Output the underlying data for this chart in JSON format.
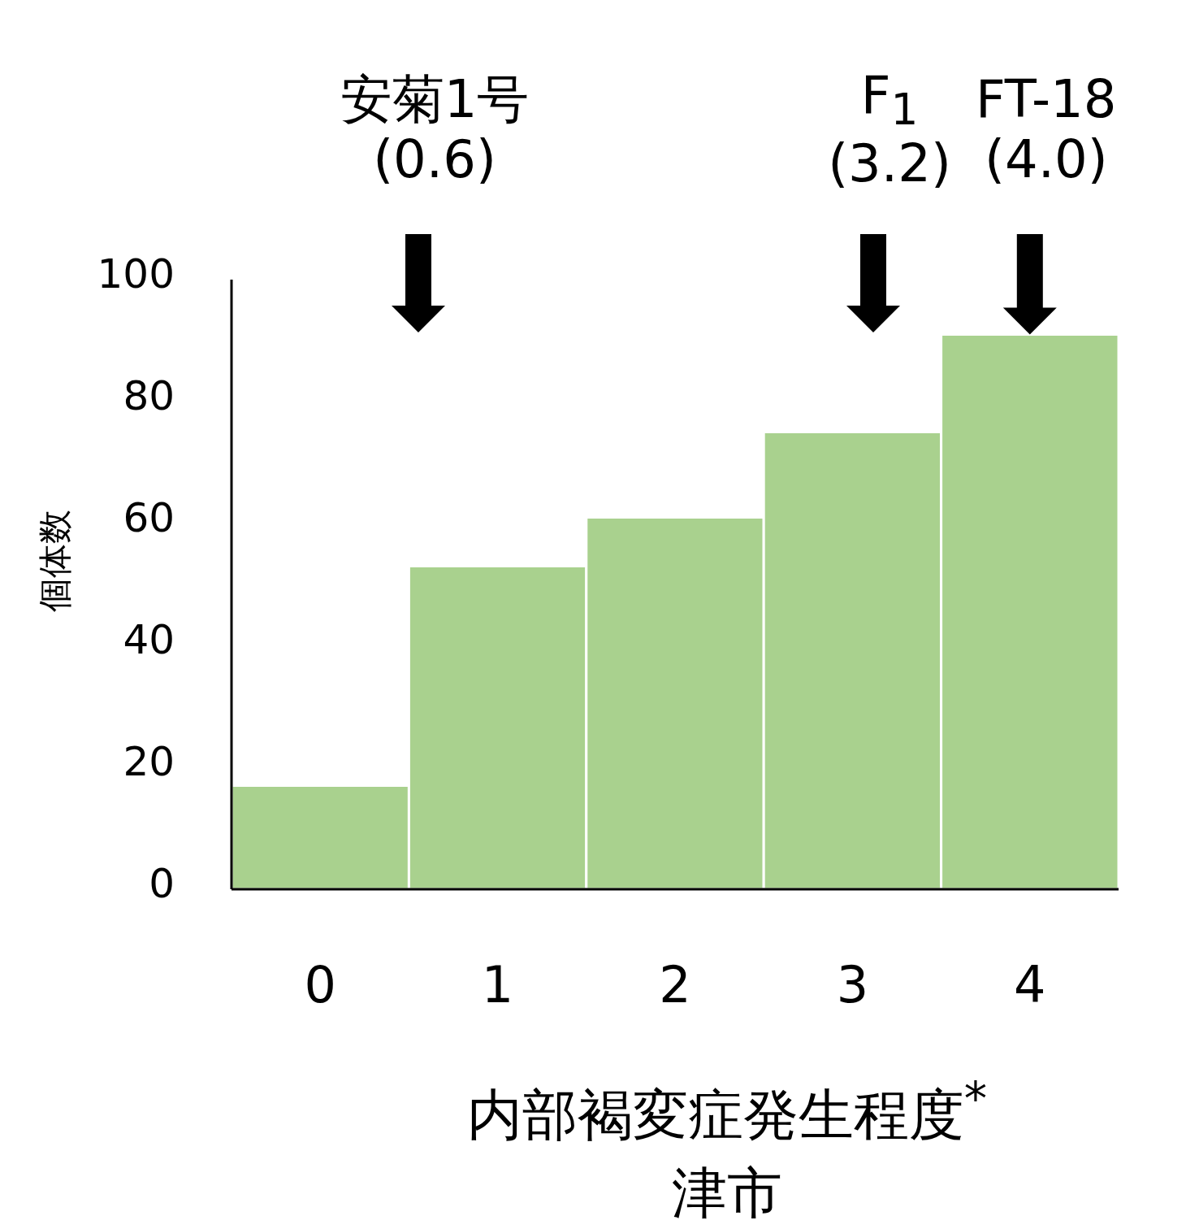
{
  "chart_data": {
    "type": "histogram",
    "bins": [
      -0.5,
      0.5,
      1.5,
      2.5,
      3.5,
      4.5
    ],
    "values": [
      17,
      53,
      61,
      75,
      91
    ],
    "color": "#a9d18e",
    "xlim": [
      -0.5,
      4.5
    ],
    "xticks": [
      0,
      1,
      2,
      3,
      4
    ],
    "ylim": [
      0,
      100
    ],
    "yticks": [
      0,
      20,
      40,
      60,
      80,
      100
    ],
    "xlabel": "内部褐変症発生程度$^{*}$",
    "ylabel": "個体数",
    "annotations": [
      "安菊1号\n(0.6)",
      "F$_{1}$\n(3.2)",
      {
        "text": "FT-18\n(4.0)",
        "x": 4.0,
        "y": 91
      },
      "津市"
    ]
  }
}
